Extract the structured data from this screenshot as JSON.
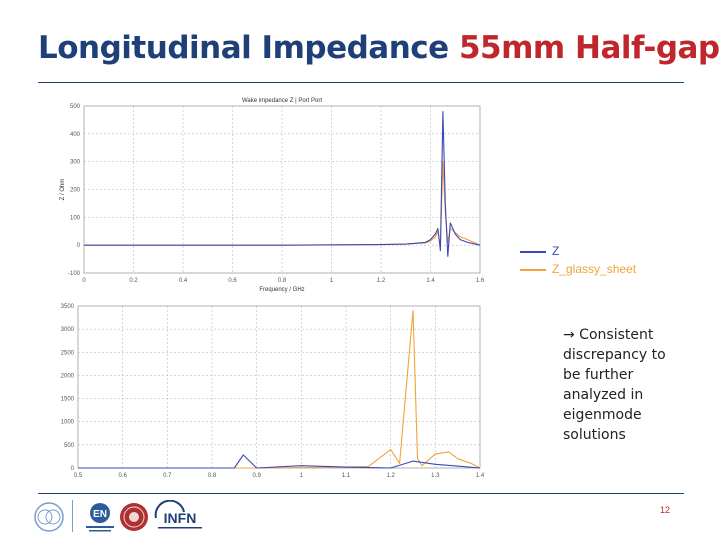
{
  "header": {
    "title_main": "Longitudinal Impedance ",
    "title_highlight": "55mm Half-gap"
  },
  "legend": {
    "items": [
      {
        "label": "Z",
        "color": "#3b49b8"
      },
      {
        "label": "Z_glassy_sheet",
        "color": "#f0a23c"
      }
    ]
  },
  "note": {
    "arrow": "→",
    "text": " Consistent discrepancy to be further analyzed in eigenmode solutions"
  },
  "footer": {
    "page_number": "12",
    "logo_text_en": "EN",
    "logo_text_infn": "INFN"
  },
  "colors": {
    "title_blue": "#1f3f78",
    "title_red": "#c0272d",
    "series_z": "#3b49b8",
    "series_glassy": "#f0a23c"
  },
  "chart_data": [
    {
      "type": "line",
      "title": "Wake impedance Z | Port Port",
      "xlabel": "Frequency / GHz",
      "ylabel": "Z / Ohm",
      "x_ticks": [
        "0",
        "0.2",
        "0.4",
        "0.6",
        "0.8",
        "1",
        "1.2",
        "1.4",
        "1.6"
      ],
      "y_ticks": [
        "-100",
        "0",
        "100",
        "200",
        "300",
        "400",
        "500"
      ],
      "xlim": [
        0,
        1.6
      ],
      "ylim": [
        -100,
        500
      ],
      "grid": true,
      "series": [
        {
          "name": "Z",
          "color": "#3b49b8",
          "x": [
            0,
            0.4,
            0.8,
            1.2,
            1.3,
            1.38,
            1.4,
            1.42,
            1.43,
            1.44,
            1.45,
            1.46,
            1.47,
            1.48,
            1.5,
            1.52,
            1.55,
            1.6
          ],
          "y": [
            0,
            0,
            0,
            2,
            4,
            10,
            20,
            40,
            60,
            -20,
            480,
            150,
            -40,
            80,
            40,
            20,
            10,
            0
          ]
        },
        {
          "name": "Z_glassy_sheet",
          "color": "#f0a23c",
          "x": [
            0,
            0.4,
            0.8,
            1.2,
            1.3,
            1.38,
            1.4,
            1.42,
            1.43,
            1.44,
            1.45,
            1.46,
            1.47,
            1.48,
            1.5,
            1.52,
            1.55,
            1.6
          ],
          "y": [
            0,
            0,
            0,
            2,
            4,
            8,
            15,
            30,
            50,
            0,
            300,
            120,
            10,
            60,
            45,
            30,
            20,
            0
          ]
        }
      ]
    },
    {
      "type": "line",
      "xlabel": "",
      "ylabel": "",
      "x_ticks": [
        "0.5",
        "0.6",
        "0.7",
        "0.8",
        "0.9",
        "1",
        "1.1",
        "1.2",
        "1.3",
        "1.4"
      ],
      "y_ticks": [
        "0",
        "500",
        "1000",
        "1500",
        "2000",
        "2500",
        "3000",
        "3500"
      ],
      "xlim": [
        0.5,
        1.4
      ],
      "ylim": [
        0,
        3500
      ],
      "grid": true,
      "series": [
        {
          "name": "Z",
          "color": "#3b49b8",
          "x": [
            0.5,
            0.6,
            0.7,
            0.8,
            0.85,
            0.87,
            0.9,
            1.0,
            1.1,
            1.2,
            1.25,
            1.3,
            1.35,
            1.4
          ],
          "y": [
            0,
            0,
            0,
            0,
            0,
            280,
            0,
            50,
            20,
            0,
            150,
            80,
            40,
            0
          ]
        },
        {
          "name": "Z_glassy_sheet",
          "color": "#f0a23c",
          "x": [
            0.5,
            0.6,
            0.7,
            0.8,
            0.9,
            1.0,
            1.1,
            1.15,
            1.2,
            1.22,
            1.25,
            1.26,
            1.27,
            1.3,
            1.33,
            1.35,
            1.38,
            1.4
          ],
          "y": [
            0,
            0,
            0,
            0,
            0,
            10,
            20,
            30,
            400,
            100,
            3400,
            200,
            50,
            300,
            350,
            200,
            100,
            0
          ]
        }
      ]
    }
  ]
}
